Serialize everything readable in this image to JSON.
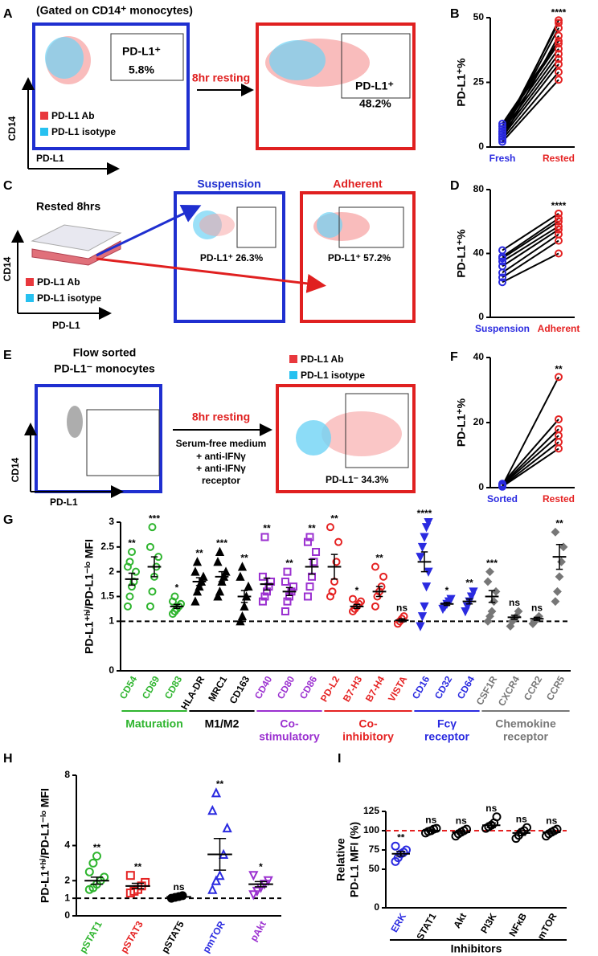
{
  "letters": [
    "A",
    "B",
    "C",
    "D",
    "E",
    "F",
    "G",
    "H",
    "I"
  ],
  "flow": {
    "A": {
      "title": "(Gated on CD14⁺ monocytes)",
      "gate1": [
        "PD-L1⁺",
        "5.8%"
      ],
      "gate2": [
        "PD-L1⁺",
        "48.2%"
      ],
      "arrow": "8hr resting",
      "legend": [
        "PD-L1 Ab",
        "PD-L1 isotype"
      ],
      "ylabel": "CD14",
      "xlabel": "PD-L1"
    },
    "C": {
      "heading": "Rested 8hrs",
      "box1": "Suspension",
      "box2": "Adherent",
      "gate1": "PD-L1⁺ 26.3%",
      "gate2": "PD-L1⁺ 57.2%",
      "legend": [
        "PD-L1 Ab",
        "PD-L1 isotype"
      ],
      "ylabel": "CD14",
      "xlabel": "PD-L1"
    },
    "E": {
      "heading": [
        "Flow sorted",
        "PD-L1⁻ monocytes"
      ],
      "arrow": "8hr resting",
      "conditions": [
        "Serum-free medium",
        "+ anti-IFNγ",
        "+ anti-IFNγ",
        "receptor"
      ],
      "legend": [
        "PD-L1 Ab",
        "PD-L1 isotype"
      ],
      "gate": "PD-L1⁻ 34.3%",
      "ylabel": "CD14",
      "xlabel": "PD-L1"
    }
  },
  "chart_data": [
    {
      "type": "paired",
      "ylabel": "PD-L1⁺%",
      "ylim": [
        0,
        50
      ],
      "yticks": [
        0,
        25,
        50
      ],
      "annotation": "****",
      "series": [
        {
          "name": "Fresh",
          "color": "#2a2ae0",
          "values": [
            2,
            3,
            4,
            5,
            6,
            7,
            8,
            9,
            3,
            5,
            6,
            4
          ]
        },
        {
          "name": "Rested",
          "color": "#e52222",
          "values": [
            26,
            29,
            32,
            34,
            36,
            38,
            40,
            41,
            43,
            46,
            48,
            49
          ]
        }
      ]
    },
    {
      "type": "paired",
      "ylabel": "PD-L1⁺%",
      "ylim": [
        0,
        80
      ],
      "yticks": [
        0,
        40,
        80
      ],
      "annotation": "****",
      "series": [
        {
          "name": "Suspension",
          "color": "#2a2ae0",
          "values": [
            22,
            25,
            28,
            32,
            35,
            37,
            38,
            42
          ]
        },
        {
          "name": "Adherent",
          "color": "#e52222",
          "values": [
            40,
            48,
            52,
            55,
            57,
            60,
            62,
            65
          ]
        }
      ]
    },
    {
      "type": "paired",
      "ylabel": "PD-L1⁺%",
      "ylim": [
        0,
        40
      ],
      "yticks": [
        0,
        20,
        40
      ],
      "annotation": "**",
      "series": [
        {
          "name": "Sorted",
          "color": "#2a2ae0",
          "values": [
            0.3,
            0.5,
            0.8,
            1,
            1.2,
            0.6
          ]
        },
        {
          "name": "Rested",
          "color": "#e52222",
          "values": [
            12,
            14,
            16,
            18,
            21,
            34
          ]
        }
      ]
    },
    {
      "type": "dot",
      "ylabel": "PD-L1⁺ʰⁱ/PD-L1⁻ˡᵒ MFI",
      "ylim": [
        0,
        3
      ],
      "yticks": [
        0,
        1,
        1.5,
        2,
        2.5,
        3
      ],
      "refline": 1,
      "refline_color": "#000",
      "groups": [
        {
          "label": [
            "Maturation"
          ],
          "color": "#2fb52f",
          "marker": "circle",
          "filled": false,
          "series": [
            {
              "name": "CD54",
              "values": [
                1.3,
                1.5,
                1.7,
                1.8,
                2.0,
                2.1,
                2.2,
                2.4
              ],
              "mean": 1.85,
              "sem": 0.12,
              "annotation": "**"
            },
            {
              "name": "CD69",
              "values": [
                1.3,
                1.6,
                1.9,
                2.1,
                2.3,
                2.5,
                2.9
              ],
              "mean": 2.1,
              "sem": 0.2,
              "annotation": "***"
            },
            {
              "name": "CD83",
              "values": [
                1.15,
                1.2,
                1.25,
                1.3,
                1.35,
                1.4,
                1.5
              ],
              "mean": 1.3,
              "sem": 0.04,
              "annotation": "*"
            }
          ]
        },
        {
          "label": [
            "M1/M2"
          ],
          "color": "#000000",
          "marker": "triangle",
          "filled": true,
          "series": [
            {
              "name": "HLA-DR",
              "values": [
                1.4,
                1.6,
                1.7,
                1.8,
                1.9,
                2.0,
                2.2
              ],
              "mean": 1.8,
              "sem": 0.08,
              "annotation": "**"
            },
            {
              "name": "MRC1",
              "values": [
                1.5,
                1.6,
                1.8,
                1.9,
                2.0,
                2.2,
                2.4
              ],
              "mean": 1.9,
              "sem": 0.1,
              "annotation": "***"
            },
            {
              "name": "CD163",
              "values": [
                1.0,
                1.1,
                1.3,
                1.5,
                1.7,
                1.9,
                2.1
              ],
              "mean": 1.5,
              "sem": 0.12,
              "annotation": "**"
            }
          ]
        },
        {
          "label": [
            "Co-",
            "stimulatory"
          ],
          "color": "#9b30d0",
          "marker": "square",
          "filled": false,
          "series": [
            {
              "name": "CD40",
              "values": [
                1.4,
                1.5,
                1.6,
                1.7,
                1.8,
                1.9,
                2.7
              ],
              "mean": 1.75,
              "sem": 0.12,
              "annotation": "**"
            },
            {
              "name": "CD80",
              "values": [
                1.2,
                1.4,
                1.5,
                1.6,
                1.7,
                1.8,
                2.0
              ],
              "mean": 1.6,
              "sem": 0.08,
              "annotation": "**"
            },
            {
              "name": "CD86",
              "values": [
                1.5,
                1.7,
                1.9,
                2.2,
                2.4,
                2.6,
                2.7
              ],
              "mean": 2.1,
              "sem": 0.15,
              "annotation": "**"
            }
          ]
        },
        {
          "label": [
            "Co-",
            "inhibitory"
          ],
          "color": "#e52222",
          "marker": "circle",
          "filled": false,
          "series": [
            {
              "name": "PD-L2",
              "values": [
                1.5,
                1.6,
                1.8,
                2.2,
                2.6,
                2.9
              ],
              "mean": 2.1,
              "sem": 0.25,
              "annotation": "**"
            },
            {
              "name": "B7-H3",
              "values": [
                1.2,
                1.25,
                1.3,
                1.35,
                1.4,
                1.45
              ],
              "mean": 1.3,
              "sem": 0.04,
              "annotation": "*"
            },
            {
              "name": "B7-H4",
              "values": [
                1.3,
                1.5,
                1.6,
                1.7,
                1.9,
                2.1
              ],
              "mean": 1.6,
              "sem": 0.1,
              "annotation": "**"
            },
            {
              "name": "VISTA",
              "values": [
                0.95,
                1.0,
                1.05,
                1.1
              ],
              "mean": 1.02,
              "sem": 0.03,
              "annotation": "ns"
            }
          ]
        },
        {
          "label": [
            "Fcγ",
            "receptor"
          ],
          "color": "#2a2ae0",
          "marker": "itriangle",
          "filled": true,
          "series": [
            {
              "name": "CD16",
              "values": [
                0.9,
                1.1,
                1.3,
                1.7,
                2.0,
                2.3,
                2.5,
                2.7,
                2.9,
                3.0
              ],
              "mean": 2.2,
              "sem": 0.2,
              "annotation": "****"
            },
            {
              "name": "CD32",
              "values": [
                1.25,
                1.3,
                1.35,
                1.4,
                1.45
              ],
              "mean": 1.35,
              "sem": 0.03,
              "annotation": "*"
            },
            {
              "name": "CD64",
              "values": [
                1.2,
                1.3,
                1.4,
                1.5,
                1.6
              ],
              "mean": 1.4,
              "sem": 0.05,
              "annotation": "**"
            }
          ]
        },
        {
          "label": [
            "Chemokine",
            "receptor"
          ],
          "color": "#777777",
          "marker": "diamond",
          "filled": true,
          "series": [
            {
              "name": "CSF1R",
              "values": [
                1.0,
                1.1,
                1.2,
                1.4,
                1.6,
                1.8,
                2.0
              ],
              "mean": 1.5,
              "sem": 0.12,
              "annotation": "***"
            },
            {
              "name": "CXCR4",
              "values": [
                0.9,
                1.0,
                1.05,
                1.1,
                1.2
              ],
              "mean": 1.08,
              "sem": 0.04,
              "annotation": "ns"
            },
            {
              "name": "CCR2",
              "values": [
                0.95,
                1.0,
                1.05,
                1.1
              ],
              "mean": 1.05,
              "sem": 0.03,
              "annotation": "ns"
            },
            {
              "name": "CCR5",
              "values": [
                1.4,
                1.6,
                1.9,
                2.2,
                2.5,
                2.8
              ],
              "mean": 2.3,
              "sem": 0.25,
              "annotation": "**"
            }
          ]
        }
      ]
    },
    {
      "type": "dot",
      "ylabel": "PD-L1⁺ʰⁱ/PD-L1⁻ˡᵒ MFI",
      "ylim": [
        0,
        8
      ],
      "yticks": [
        0,
        1,
        2,
        4,
        8
      ],
      "refline": 1,
      "refline_color": "#000",
      "series": [
        {
          "name": "pSTAT1",
          "color": "#2fb52f",
          "marker": "circle",
          "filled": false,
          "values": [
            1.5,
            1.6,
            1.8,
            2.0,
            2.2,
            2.5,
            3.0,
            3.4
          ],
          "mean": 2.0,
          "sem": 0.2,
          "annotation": "**"
        },
        {
          "name": "pSTAT3",
          "color": "#e52222",
          "marker": "square",
          "filled": false,
          "values": [
            1.3,
            1.4,
            1.5,
            1.7,
            1.9,
            2.3
          ],
          "mean": 1.7,
          "sem": 0.15,
          "annotation": "**"
        },
        {
          "name": "pSTAT5",
          "color": "#000000",
          "marker": "circle",
          "filled": true,
          "values": [
            1.0,
            1.05,
            1.1,
            1.15
          ],
          "mean": 1.08,
          "sem": 0.02,
          "annotation": "ns"
        },
        {
          "name": "pmTOR",
          "color": "#2a2ae0",
          "marker": "triangle",
          "filled": false,
          "values": [
            1.5,
            2.0,
            2.3,
            3.5,
            5,
            6,
            7
          ],
          "mean": 3.5,
          "sem": 0.9,
          "annotation": "**"
        },
        {
          "name": "pAkt",
          "color": "#9b30d0",
          "marker": "itriangle",
          "filled": false,
          "values": [
            1.2,
            1.4,
            1.6,
            1.8,
            2.0,
            2.3
          ],
          "mean": 1.8,
          "sem": 0.15,
          "annotation": "*"
        }
      ]
    },
    {
      "type": "dot",
      "ylabel": [
        "Relative",
        "PD-L1 MFI (%)"
      ],
      "xlabel": "Inhibitors",
      "ylim": [
        0,
        125
      ],
      "yticks": [
        0,
        50,
        75,
        100,
        125
      ],
      "refline": 100,
      "refline_color": "#e52222",
      "series": [
        {
          "name": "ERK",
          "color": "#2a2ae0",
          "marker": "circle",
          "filled": false,
          "values": [
            60,
            65,
            70,
            72,
            75,
            80
          ],
          "mean": 70,
          "sem": 3,
          "annotation": "**"
        },
        {
          "name": "STAT1",
          "color": "#000000",
          "marker": "circle",
          "filled": false,
          "values": [
            97,
            99,
            100,
            102,
            103
          ],
          "mean": 100,
          "sem": 1,
          "annotation": "ns"
        },
        {
          "name": "Akt",
          "color": "#000000",
          "marker": "circle",
          "filled": false,
          "values": [
            93,
            96,
            98,
            100,
            102
          ],
          "mean": 98,
          "sem": 2,
          "annotation": "ns"
        },
        {
          "name": "PI3K",
          "color": "#000000",
          "marker": "circle",
          "filled": false,
          "values": [
            103,
            105,
            107,
            110,
            118
          ],
          "mean": 107,
          "sem": 3,
          "annotation": "ns"
        },
        {
          "name": "NFκB",
          "color": "#000000",
          "marker": "circle",
          "filled": false,
          "values": [
            90,
            94,
            98,
            100,
            104
          ],
          "mean": 97,
          "sem": 3,
          "annotation": "ns"
        },
        {
          "name": "mTOR",
          "color": "#000000",
          "marker": "circle",
          "filled": false,
          "values": [
            93,
            96,
            98,
            100,
            102
          ],
          "mean": 98,
          "sem": 2,
          "annotation": "ns"
        }
      ]
    }
  ]
}
